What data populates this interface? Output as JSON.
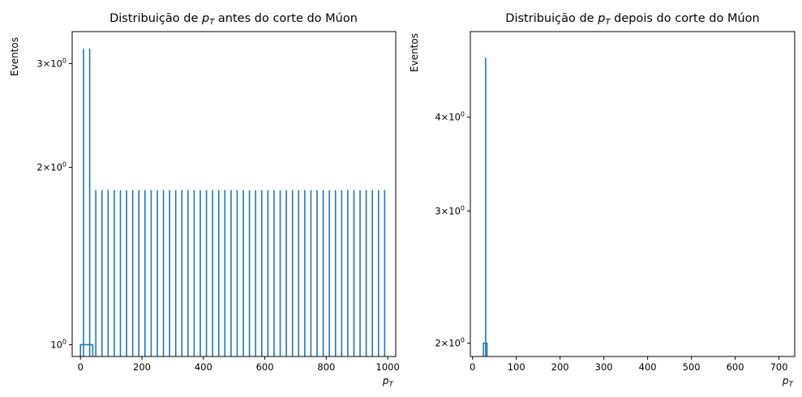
{
  "colors": {
    "series": "#1f77b4",
    "axis": "#000000",
    "background": "#ffffff"
  },
  "chart_data": [
    {
      "type": "histogram",
      "title_prefix": "Distribuição de ",
      "title_var": "p",
      "title_sub": "T",
      "title_suffix": " antes do corte do Múon",
      "xlabel_var": "p",
      "xlabel_sub": "T",
      "ylabel": "Eventos",
      "yscale": "log",
      "xlim": [
        -27,
        1026
      ],
      "ylim": [
        0.955,
        3.4
      ],
      "x_ticks": [
        0,
        200,
        400,
        600,
        800,
        1000
      ],
      "y_ticks": [
        {
          "value": 1,
          "base": "10",
          "exp": "0",
          "mant": ""
        },
        {
          "value": 2,
          "base": "10",
          "exp": "0",
          "mant": "2"
        },
        {
          "value": 3,
          "base": "10",
          "exp": "0",
          "mant": "3"
        }
      ],
      "spikes": [
        {
          "x": 10,
          "y": 3.18
        },
        {
          "x": 30,
          "y": 3.18
        },
        {
          "x": 50,
          "y": 1.83
        },
        {
          "x": 70,
          "y": 1.83
        },
        {
          "x": 90,
          "y": 1.83
        },
        {
          "x": 110,
          "y": 1.83
        },
        {
          "x": 130,
          "y": 1.83
        },
        {
          "x": 150,
          "y": 1.83
        },
        {
          "x": 170,
          "y": 1.83
        },
        {
          "x": 190,
          "y": 1.83
        },
        {
          "x": 210,
          "y": 1.83
        },
        {
          "x": 230,
          "y": 1.83
        },
        {
          "x": 250,
          "y": 1.83
        },
        {
          "x": 270,
          "y": 1.83
        },
        {
          "x": 290,
          "y": 1.83
        },
        {
          "x": 310,
          "y": 1.83
        },
        {
          "x": 330,
          "y": 1.83
        },
        {
          "x": 350,
          "y": 1.83
        },
        {
          "x": 370,
          "y": 1.83
        },
        {
          "x": 390,
          "y": 1.83
        },
        {
          "x": 410,
          "y": 1.83
        },
        {
          "x": 430,
          "y": 1.83
        },
        {
          "x": 450,
          "y": 1.83
        },
        {
          "x": 470,
          "y": 1.83
        },
        {
          "x": 490,
          "y": 1.83
        },
        {
          "x": 510,
          "y": 1.83
        },
        {
          "x": 530,
          "y": 1.83
        },
        {
          "x": 550,
          "y": 1.83
        },
        {
          "x": 570,
          "y": 1.83
        },
        {
          "x": 590,
          "y": 1.83
        },
        {
          "x": 610,
          "y": 1.83
        },
        {
          "x": 630,
          "y": 1.83
        },
        {
          "x": 650,
          "y": 1.83
        },
        {
          "x": 670,
          "y": 1.83
        },
        {
          "x": 690,
          "y": 1.83
        },
        {
          "x": 710,
          "y": 1.83
        },
        {
          "x": 730,
          "y": 1.83
        },
        {
          "x": 750,
          "y": 1.83
        },
        {
          "x": 770,
          "y": 1.83
        },
        {
          "x": 790,
          "y": 1.83
        },
        {
          "x": 810,
          "y": 1.83
        },
        {
          "x": 830,
          "y": 1.83
        },
        {
          "x": 850,
          "y": 1.83
        },
        {
          "x": 870,
          "y": 1.83
        },
        {
          "x": 890,
          "y": 1.83
        },
        {
          "x": 910,
          "y": 1.83
        },
        {
          "x": 930,
          "y": 1.83
        },
        {
          "x": 950,
          "y": 1.83
        },
        {
          "x": 970,
          "y": 1.83
        },
        {
          "x": 990,
          "y": 1.83
        }
      ],
      "bins": [
        {
          "x0": 0,
          "x1": 40,
          "y": 1.0
        }
      ]
    },
    {
      "type": "histogram",
      "title_prefix": "Distribuição de ",
      "title_var": "p",
      "title_sub": "T",
      "title_suffix": " depois do corte do Múon",
      "xlabel_var": "p",
      "xlabel_sub": "T",
      "ylabel": "Eventos",
      "yscale": "log",
      "xlim": [
        -5,
        736
      ],
      "ylim": [
        1.92,
        5.2
      ],
      "x_ticks": [
        0,
        100,
        200,
        300,
        400,
        500,
        600,
        700
      ],
      "y_ticks": [
        {
          "value": 2,
          "base": "10",
          "exp": "0",
          "mant": "2"
        },
        {
          "value": 3,
          "base": "10",
          "exp": "0",
          "mant": "3"
        },
        {
          "value": 4,
          "base": "10",
          "exp": "0",
          "mant": "4"
        }
      ],
      "spikes": [
        {
          "x": 30,
          "y": 4.8
        }
      ],
      "bins": [
        {
          "x0": 25,
          "x1": 33,
          "y": 2.0
        }
      ]
    }
  ]
}
